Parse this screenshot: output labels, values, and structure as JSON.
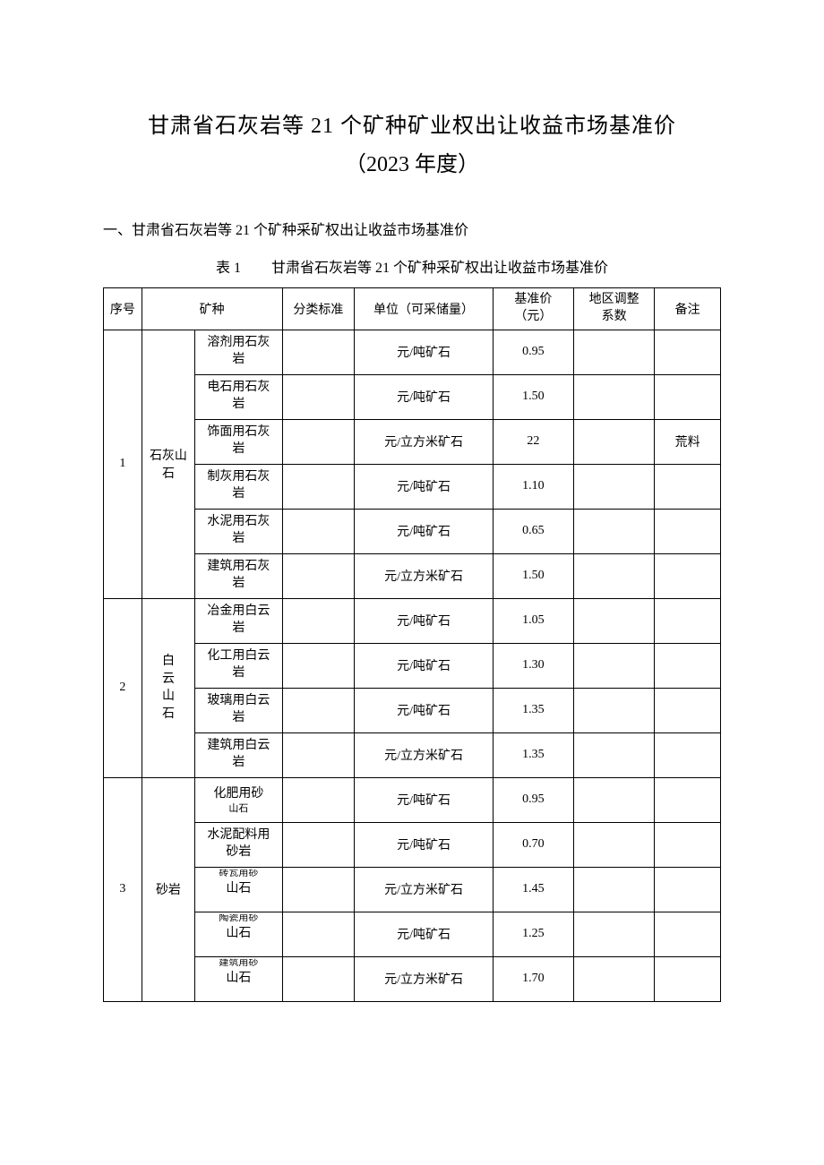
{
  "title_main": "甘肃省石灰岩等 21 个矿种矿业权出让收益市场基准价",
  "title_sub": "（2023 年度）",
  "section_header": "一、甘肃省石灰岩等 21 个矿种采矿权出让收益市场基准价",
  "table_caption_label": "表 1",
  "table_caption_text": "甘肃省石灰岩等 21 个矿种采矿权出让收益市场基准价",
  "columns": {
    "seq": "序号",
    "mineral": "矿种",
    "classification": "分类标准",
    "unit": "单位（可采储量）",
    "price_line1": "基准价",
    "price_line2": "（元）",
    "region_line1": "地区调整",
    "region_line2": "系数",
    "note": "备注"
  },
  "groups": [
    {
      "seq": "1",
      "category": "石灰山石",
      "rows": [
        {
          "sub_line1": "溶剂用石灰",
          "sub_line2": "岩",
          "std": "",
          "unit": "元/吨矿石",
          "price": "0.95",
          "region": "",
          "note": ""
        },
        {
          "sub_line1": "电石用石灰",
          "sub_line2": "岩",
          "std": "",
          "unit": "元/吨矿石",
          "price": "1.50",
          "region": "",
          "note": ""
        },
        {
          "sub_line1": "饰面用石灰",
          "sub_line2": "岩",
          "std": "",
          "unit": "元/立方米矿石",
          "price": "22",
          "region": "",
          "note": "荒料"
        },
        {
          "sub_line1": "制灰用石灰",
          "sub_line2": "岩",
          "std": "",
          "unit": "元/吨矿石",
          "price": "1.10",
          "region": "",
          "note": ""
        },
        {
          "sub_line1": "水泥用石灰",
          "sub_line2": "岩",
          "std": "",
          "unit": "元/吨矿石",
          "price": "0.65",
          "region": "",
          "note": ""
        },
        {
          "sub_line1": "建筑用石灰",
          "sub_line2": "岩",
          "std": "",
          "unit": "元/立方米矿石",
          "price": "1.50",
          "region": "",
          "note": ""
        }
      ]
    },
    {
      "seq": "2",
      "category": "白云山石",
      "category_vertical": true,
      "rows": [
        {
          "sub_line1": "冶金用白云",
          "sub_line2": "岩",
          "std": "",
          "unit": "元/吨矿石",
          "price": "1.05",
          "region": "",
          "note": ""
        },
        {
          "sub_line1": "化工用白云",
          "sub_line2": "岩",
          "std": "",
          "unit": "元/吨矿石",
          "price": "1.30",
          "region": "",
          "note": ""
        },
        {
          "sub_line1": "玻璃用白云",
          "sub_line2": "岩",
          "std": "",
          "unit": "元/吨矿石",
          "price": "1.35",
          "region": "",
          "note": ""
        },
        {
          "sub_line1": "建筑用白云",
          "sub_line2": "岩",
          "std": "",
          "unit": "元/立方米矿石",
          "price": "1.35",
          "region": "",
          "note": ""
        }
      ]
    },
    {
      "seq": "3",
      "category": "砂岩",
      "rows": [
        {
          "sub_line1": "化肥用砂",
          "sub_line2": "山石",
          "std": "",
          "unit": "元/吨矿石",
          "price": "0.95",
          "region": "",
          "note": "",
          "narrow_bottom": true
        },
        {
          "sub_line1": "水泥配料用",
          "sub_line2": "砂岩",
          "std": "",
          "unit": "元/吨矿石",
          "price": "0.70",
          "region": "",
          "note": ""
        },
        {
          "sub_line1": "砖瓦用砂",
          "sub_line2": "山石",
          "std": "",
          "unit": "元/立方米矿石",
          "price": "1.45",
          "region": "",
          "note": "",
          "narrow_top": true
        },
        {
          "sub_line1": "陶瓷用砂",
          "sub_line2": "山石",
          "std": "",
          "unit": "元/吨矿石",
          "price": "1.25",
          "region": "",
          "note": "",
          "narrow_top": true
        },
        {
          "sub_line1": "建筑用砂",
          "sub_line2": "山石",
          "std": "",
          "unit": "元/立方米矿石",
          "price": "1.70",
          "region": "",
          "note": "",
          "narrow_top": true
        }
      ]
    }
  ]
}
